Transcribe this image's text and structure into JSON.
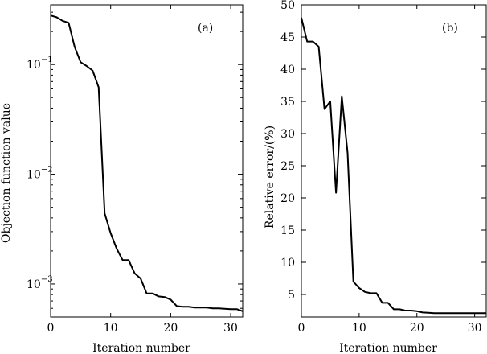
{
  "chart_data": [
    {
      "type": "line",
      "panel_label": "(a)",
      "title": "",
      "xlabel": "Iteration number",
      "ylabel": "Objection function value",
      "yscale": "log",
      "xlim": [
        0,
        32
      ],
      "ylim": [
        0.0005,
        0.35
      ],
      "xticks": [
        0,
        10,
        20,
        30
      ],
      "xtick_labels": [
        "0",
        "10",
        "20",
        "30"
      ],
      "yticks": [
        0.001,
        0.01,
        0.1
      ],
      "ytick_labels": [
        {
          "base": "10",
          "exp": "−3"
        },
        {
          "base": "10",
          "exp": "−2"
        },
        {
          "base": "10",
          "exp": "−1"
        }
      ],
      "grid": false,
      "series": [
        {
          "x": [
            0,
            1,
            2,
            3,
            4,
            5,
            6,
            7,
            8,
            9,
            10,
            11,
            12,
            13,
            14,
            15,
            16,
            17,
            18,
            19,
            20,
            21,
            22,
            23,
            24,
            25,
            26,
            27,
            28,
            29,
            30,
            31,
            32
          ],
          "y": [
            0.28,
            0.27,
            0.25,
            0.24,
            0.145,
            0.105,
            0.097,
            0.088,
            0.062,
            0.0044,
            0.0029,
            0.0021,
            0.00165,
            0.00165,
            0.00125,
            0.00112,
            0.00082,
            0.00082,
            0.00077,
            0.00076,
            0.00072,
            0.00063,
            0.00062,
            0.00062,
            0.00061,
            0.00061,
            0.00061,
            0.0006,
            0.0006,
            0.000595,
            0.00059,
            0.00059,
            0.000565
          ]
        }
      ]
    },
    {
      "type": "line",
      "panel_label": "(b)",
      "title": "",
      "xlabel": "Iteration number",
      "ylabel": "Relative error/(%)",
      "yscale": "linear",
      "xlim": [
        0,
        32
      ],
      "ylim": [
        1.5,
        50
      ],
      "xticks": [
        0,
        10,
        20,
        30
      ],
      "xtick_labels": [
        "0",
        "10",
        "20",
        "30"
      ],
      "yticks": [
        5,
        10,
        15,
        20,
        25,
        30,
        35,
        40,
        45,
        50
      ],
      "ytick_labels": [
        "5",
        "10",
        "15",
        "20",
        "25",
        "30",
        "35",
        "40",
        "45",
        "50"
      ],
      "grid": false,
      "series": [
        {
          "x": [
            0,
            1,
            2,
            3,
            4,
            5,
            6,
            7,
            8,
            9,
            10,
            11,
            12,
            13,
            14,
            15,
            16,
            17,
            18,
            19,
            20,
            21,
            22,
            23,
            24,
            25,
            26,
            27,
            28,
            29,
            30,
            31,
            32
          ],
          "y": [
            48,
            44.3,
            44.3,
            43.5,
            33.8,
            35,
            20.8,
            35.8,
            27,
            7,
            6,
            5.4,
            5.2,
            5.2,
            3.7,
            3.7,
            2.7,
            2.7,
            2.5,
            2.5,
            2.4,
            2.2,
            2.15,
            2.1,
            2.1,
            2.1,
            2.1,
            2.1,
            2.1,
            2.1,
            2.1,
            2.1,
            2.1
          ]
        }
      ]
    }
  ]
}
